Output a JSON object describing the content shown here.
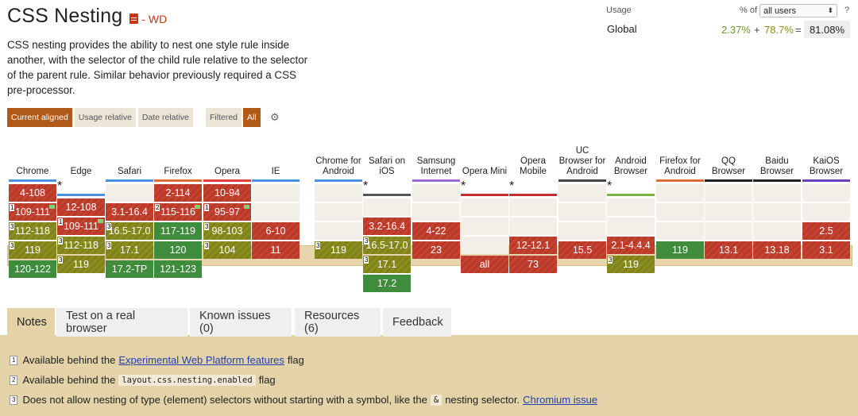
{
  "title": "CSS Nesting",
  "spec_status": "- WD",
  "description": "CSS nesting provides the ability to nest one style rule inside another, with the selector of the child rule relative to the selector of the parent rule. Similar behavior previously required a CSS pre-processor.",
  "usage": {
    "label": "Usage",
    "pct_of": "% of",
    "users_select": "all users",
    "help": "?",
    "global_label": "Global",
    "supported": "2.37%",
    "plus": "+",
    "partial": "78.7%",
    "equals": "=",
    "total": "81.08%"
  },
  "views": [
    "Current aligned",
    "Usage relative",
    "Date relative"
  ],
  "filter": {
    "label": "Filtered",
    "value": "All"
  },
  "colors": {
    "no": "#c44230",
    "yes": "#3e8c3c",
    "partial": "#8b8e1e",
    "accent": "#b05a1a"
  },
  "browsers": [
    {
      "name": "Chrome",
      "bar": "#4a90e2",
      "ast": false,
      "cells": [
        {
          "t": "n",
          "v": "4-108"
        },
        {
          "t": "n",
          "v": "109-111",
          "note": "1",
          "flag": true
        },
        {
          "t": "a",
          "v": "112-118",
          "note": "3"
        },
        {
          "t": "a",
          "v": "119",
          "note": "3"
        },
        {
          "t": "y",
          "v": "120-122"
        }
      ]
    },
    {
      "name": "Edge",
      "bar": "#4a90e2",
      "ast": true,
      "cells": [
        {
          "t": "n",
          "v": "12-108"
        },
        {
          "t": "n",
          "v": "109-111",
          "note": "1",
          "flag": true
        },
        {
          "t": "a",
          "v": "112-118",
          "note": "3"
        },
        {
          "t": "a",
          "v": "119",
          "note": "3"
        },
        {
          "t": "blank",
          "v": ""
        }
      ]
    },
    {
      "name": "Safari",
      "bar": "#4a90e2",
      "ast": false,
      "cells": [
        {
          "t": "empty",
          "v": ""
        },
        {
          "t": "n",
          "v": "3.1-16.4"
        },
        {
          "t": "a",
          "v": "16.5-17.0",
          "note": "3"
        },
        {
          "t": "a",
          "v": "17.1",
          "note": "3"
        },
        {
          "t": "y",
          "v": "17.2-TP"
        }
      ]
    },
    {
      "name": "Firefox",
      "bar": "#e06c33",
      "ast": false,
      "cells": [
        {
          "t": "n",
          "v": "2-114"
        },
        {
          "t": "n",
          "v": "115-116",
          "note": "2",
          "flag": true
        },
        {
          "t": "y",
          "v": "117-119"
        },
        {
          "t": "y",
          "v": "120"
        },
        {
          "t": "y",
          "v": "121-123"
        }
      ]
    },
    {
      "name": "Opera",
      "bar": "#e04040",
      "ast": false,
      "cells": [
        {
          "t": "n",
          "v": "10-94"
        },
        {
          "t": "n",
          "v": "95-97",
          "note": "1",
          "flag": true
        },
        {
          "t": "a",
          "v": "98-103",
          "note": "3"
        },
        {
          "t": "a",
          "v": "104",
          "note": "3"
        },
        {
          "t": "blank",
          "v": ""
        }
      ]
    },
    {
      "name": "IE",
      "bar": "#4a90e2",
      "ast": false,
      "cells": [
        {
          "t": "empty",
          "v": ""
        },
        {
          "t": "empty",
          "v": ""
        },
        {
          "t": "n",
          "v": "6-10"
        },
        {
          "t": "n",
          "v": "11"
        },
        {
          "t": "blank",
          "v": ""
        }
      ]
    },
    {
      "name": "Chrome for Android",
      "bar": "#4a90e2",
      "ast": false,
      "cells": [
        {
          "t": "empty",
          "v": ""
        },
        {
          "t": "empty",
          "v": ""
        },
        {
          "t": "empty",
          "v": ""
        },
        {
          "t": "a",
          "v": "119",
          "note": "3"
        },
        {
          "t": "blank",
          "v": ""
        }
      ]
    },
    {
      "name": "Safari on iOS",
      "bar": "#555555",
      "ast": true,
      "cells": [
        {
          "t": "empty",
          "v": ""
        },
        {
          "t": "n",
          "v": "3.2-16.4"
        },
        {
          "t": "a",
          "v": "16.5-17.0",
          "note": "3"
        },
        {
          "t": "a",
          "v": "17.1",
          "note": "3"
        },
        {
          "t": "y",
          "v": "17.2"
        }
      ]
    },
    {
      "name": "Samsung Internet",
      "bar": "#9b6fd6",
      "ast": false,
      "cells": [
        {
          "t": "empty",
          "v": ""
        },
        {
          "t": "empty",
          "v": ""
        },
        {
          "t": "n",
          "v": "4-22"
        },
        {
          "t": "n",
          "v": "23"
        },
        {
          "t": "blank",
          "v": ""
        }
      ]
    },
    {
      "name": "Opera Mini",
      "bar": "#c03030",
      "ast": true,
      "cells": [
        {
          "t": "empty",
          "v": ""
        },
        {
          "t": "empty",
          "v": ""
        },
        {
          "t": "empty",
          "v": ""
        },
        {
          "t": "n",
          "v": "all"
        },
        {
          "t": "blank",
          "v": ""
        }
      ]
    },
    {
      "name": "Opera Mobile",
      "bar": "#c03030",
      "ast": true,
      "cells": [
        {
          "t": "empty",
          "v": ""
        },
        {
          "t": "empty",
          "v": ""
        },
        {
          "t": "n",
          "v": "12-12.1"
        },
        {
          "t": "n",
          "v": "73"
        },
        {
          "t": "blank",
          "v": ""
        }
      ]
    },
    {
      "name": "UC Browser for Android",
      "bar": "#444444",
      "ast": false,
      "cells": [
        {
          "t": "empty",
          "v": ""
        },
        {
          "t": "empty",
          "v": ""
        },
        {
          "t": "empty",
          "v": ""
        },
        {
          "t": "n",
          "v": "15.5"
        },
        {
          "t": "blank",
          "v": ""
        }
      ]
    },
    {
      "name": "Android Browser",
      "bar": "#7cb342",
      "ast": true,
      "cells": [
        {
          "t": "empty",
          "v": ""
        },
        {
          "t": "empty",
          "v": ""
        },
        {
          "t": "n",
          "v": "2.1-4.4.4"
        },
        {
          "t": "a",
          "v": "119",
          "note": "3"
        },
        {
          "t": "blank",
          "v": ""
        }
      ]
    },
    {
      "name": "Firefox for Android",
      "bar": "#e06c33",
      "ast": false,
      "cells": [
        {
          "t": "empty",
          "v": ""
        },
        {
          "t": "empty",
          "v": ""
        },
        {
          "t": "empty",
          "v": ""
        },
        {
          "t": "y",
          "v": "119"
        },
        {
          "t": "blank",
          "v": ""
        }
      ]
    },
    {
      "name": "QQ Browser",
      "bar": "#222222",
      "ast": false,
      "cells": [
        {
          "t": "empty",
          "v": ""
        },
        {
          "t": "empty",
          "v": ""
        },
        {
          "t": "empty",
          "v": ""
        },
        {
          "t": "n",
          "v": "13.1"
        },
        {
          "t": "blank",
          "v": ""
        }
      ]
    },
    {
      "name": "Baidu Browser",
      "bar": "#222222",
      "ast": false,
      "cells": [
        {
          "t": "empty",
          "v": ""
        },
        {
          "t": "empty",
          "v": ""
        },
        {
          "t": "empty",
          "v": ""
        },
        {
          "t": "n",
          "v": "13.18"
        },
        {
          "t": "blank",
          "v": ""
        }
      ]
    },
    {
      "name": "KaiOS Browser",
      "bar": "#6a3fc1",
      "ast": false,
      "cells": [
        {
          "t": "empty",
          "v": ""
        },
        {
          "t": "empty",
          "v": ""
        },
        {
          "t": "n",
          "v": "2.5"
        },
        {
          "t": "n",
          "v": "3.1"
        },
        {
          "t": "blank",
          "v": ""
        }
      ]
    }
  ],
  "tabs": [
    "Notes",
    "Test on a real browser",
    "Known issues (0)",
    "Resources (6)",
    "Feedback"
  ],
  "notes": [
    {
      "num": "1",
      "pre": "Available behind the",
      "link": "Experimental Web Platform features",
      "post": "flag"
    },
    {
      "num": "2",
      "pre": "Available behind the",
      "code": "layout.css.nesting.enabled",
      "post": "flag"
    },
    {
      "num": "3",
      "pre": "Does not allow nesting of type (element) selectors without starting with a symbol, like the",
      "code": "&",
      "post": "nesting selector.",
      "link2": "Chromium issue"
    }
  ]
}
